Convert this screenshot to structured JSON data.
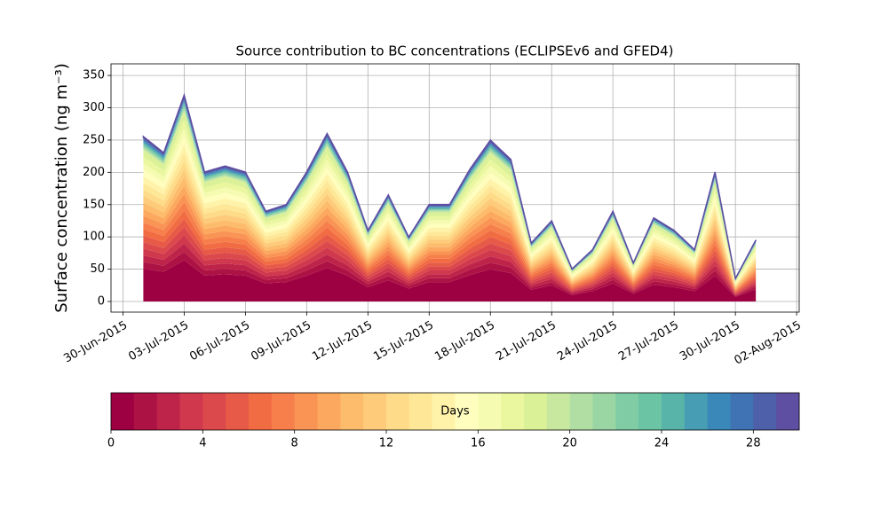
{
  "chart_data": {
    "type": "stacked_area",
    "title": "Source contribution to BC concentrations (ECLIPSEv6 and GFED4)",
    "y_label": "Surface concentration (ng m⁻³)",
    "x": [
      "2015-07-01",
      "2015-07-02",
      "2015-07-03",
      "2015-07-04",
      "2015-07-05",
      "2015-07-06",
      "2015-07-07",
      "2015-07-08",
      "2015-07-09",
      "2015-07-10",
      "2015-07-11",
      "2015-07-12",
      "2015-07-13",
      "2015-07-14",
      "2015-07-15",
      "2015-07-16",
      "2015-07-17",
      "2015-07-18",
      "2015-07-19",
      "2015-07-20",
      "2015-07-21",
      "2015-07-22",
      "2015-07-23",
      "2015-07-24",
      "2015-07-25",
      "2015-07-26",
      "2015-07-27",
      "2015-07-28",
      "2015-07-29",
      "2015-07-30",
      "2015-07-31"
    ],
    "xlim": [
      "2015-06-29T10:00",
      "2015-08-02T03:00"
    ],
    "xticks": [
      {
        "value": "2015-06-30",
        "label": "30-Jun-2015"
      },
      {
        "value": "2015-07-03",
        "label": "03-Jul-2015"
      },
      {
        "value": "2015-07-06",
        "label": "06-Jul-2015"
      },
      {
        "value": "2015-07-09",
        "label": "09-Jul-2015"
      },
      {
        "value": "2015-07-12",
        "label": "12-Jul-2015"
      },
      {
        "value": "2015-07-15",
        "label": "15-Jul-2015"
      },
      {
        "value": "2015-07-18",
        "label": "18-Jul-2015"
      },
      {
        "value": "2015-07-21",
        "label": "21-Jul-2015"
      },
      {
        "value": "2015-07-24",
        "label": "24-Jul-2015"
      },
      {
        "value": "2015-07-27",
        "label": "27-Jul-2015"
      },
      {
        "value": "2015-07-30",
        "label": "30-Jul-2015"
      },
      {
        "value": "2015-08-02",
        "label": "02-Aug-2015"
      }
    ],
    "ylim": [
      -16.5,
      368
    ],
    "yticks": [
      0,
      50,
      100,
      150,
      200,
      250,
      300,
      350
    ],
    "grid": true,
    "series": [
      {
        "color": "#9e0142",
        "values": [
          51,
          46,
          64,
          40,
          42,
          40,
          28,
          30,
          40,
          52,
          40,
          22,
          33,
          20,
          30,
          30,
          41,
          50,
          44,
          18,
          25,
          10,
          16,
          28,
          12,
          26,
          22,
          16,
          40,
          7,
          19
        ]
      },
      {
        "color": "#ad1245",
        "values": [
          10.2,
          9.2,
          12.8,
          8,
          8.4,
          8,
          5.6,
          6,
          8,
          10.4,
          8,
          4.4,
          6.6,
          4,
          6,
          6,
          8.2,
          10,
          8.8,
          3.6,
          5,
          2,
          3.2,
          5.6,
          2.4,
          5.2,
          4.4,
          3.2,
          8,
          1.4,
          3.8
        ]
      },
      {
        "color": "#be2449",
        "values": [
          10.2,
          9.2,
          12.8,
          8,
          8.4,
          8,
          5.6,
          6,
          8,
          10.4,
          8,
          4.4,
          6.6,
          4,
          6,
          6,
          8.2,
          10,
          8.8,
          3.6,
          5,
          2,
          3.2,
          5.6,
          2.4,
          5.2,
          4.4,
          3.2,
          8,
          1.4,
          3.8
        ]
      },
      {
        "color": "#cf384d",
        "values": [
          10.2,
          9.2,
          12.8,
          8,
          8.4,
          8,
          5.6,
          6,
          8,
          10.4,
          8,
          4.4,
          6.6,
          4,
          6,
          6,
          8.2,
          10,
          8.8,
          3.6,
          5,
          2,
          3.2,
          5.6,
          2.4,
          5.2,
          4.4,
          3.2,
          8,
          1.4,
          3.8
        ]
      },
      {
        "color": "#dc494c",
        "values": [
          10.2,
          9.2,
          12.8,
          8,
          8.4,
          8,
          5.6,
          6,
          8,
          10.4,
          8,
          4.4,
          6.6,
          4,
          6,
          6,
          8.2,
          10,
          8.8,
          3.6,
          5,
          2,
          3.2,
          5.6,
          2.4,
          5.2,
          4.4,
          3.2,
          8,
          1.4,
          3.8
        ]
      },
      {
        "color": "#e75a47",
        "values": [
          10.2,
          9.2,
          12.8,
          8,
          8.4,
          8,
          5.6,
          6,
          8,
          10.4,
          8,
          4.4,
          6.6,
          4,
          6,
          6,
          8.2,
          10,
          8.8,
          3.6,
          5,
          2,
          3.2,
          5.6,
          2.4,
          5.2,
          4.4,
          3.2,
          8,
          1.4,
          3.8
        ]
      },
      {
        "color": "#f16c43",
        "values": [
          10.2,
          9.2,
          12.8,
          8,
          8.4,
          8,
          5.6,
          6,
          8,
          10.4,
          8,
          4.4,
          6.6,
          4,
          6,
          6,
          8.2,
          10,
          8.8,
          3.6,
          5,
          2,
          3.2,
          5.6,
          2.4,
          5.2,
          4.4,
          3.2,
          8,
          1.4,
          3.8
        ]
      },
      {
        "color": "#f67f4b",
        "values": [
          10.2,
          9.2,
          12.8,
          8,
          8.4,
          8,
          5.6,
          6,
          8,
          10.4,
          8,
          4.4,
          6.6,
          4,
          6,
          6,
          8.2,
          10,
          8.8,
          3.6,
          5,
          2,
          3.2,
          5.6,
          2.4,
          5.2,
          4.4,
          3.2,
          8,
          1.4,
          3.8
        ]
      },
      {
        "color": "#f99455",
        "values": [
          10.2,
          9.2,
          12.8,
          8,
          8.4,
          8,
          5.6,
          6,
          8,
          10.4,
          8,
          4.4,
          6.6,
          4,
          6,
          6,
          8.2,
          10,
          8.8,
          3.6,
          5,
          2,
          3.2,
          5.6,
          2.4,
          5.2,
          4.4,
          3.2,
          8,
          1.4,
          3.8
        ]
      },
      {
        "color": "#fca85e",
        "values": [
          10.2,
          9.2,
          12.8,
          8,
          8.4,
          8,
          5.6,
          6,
          8,
          10.4,
          8,
          4.4,
          6.6,
          4,
          6,
          6,
          8.2,
          10,
          8.8,
          3.6,
          5,
          2,
          3.2,
          5.6,
          2.4,
          5.2,
          4.4,
          3.2,
          8,
          1.4,
          3.8
        ]
      },
      {
        "color": "#fdbb6c",
        "values": [
          10.2,
          9.2,
          12.8,
          8,
          8.4,
          8,
          5.6,
          6,
          8,
          10.4,
          8,
          4.4,
          6.6,
          4,
          6,
          6,
          8.2,
          10,
          8.8,
          3.6,
          5,
          2,
          3.2,
          5.6,
          2.4,
          5.2,
          4.4,
          3.2,
          8,
          1.4,
          3.8
        ]
      },
      {
        "color": "#fdcb7a",
        "values": [
          10.2,
          9.2,
          12.8,
          8,
          8.4,
          8,
          5.6,
          6,
          8,
          10.4,
          8,
          4.4,
          6.6,
          4,
          6,
          6,
          8.2,
          10,
          8.8,
          3.6,
          5,
          2,
          3.2,
          5.6,
          2.4,
          5.2,
          4.4,
          3.2,
          8,
          1.4,
          3.8
        ]
      },
      {
        "color": "#fedb88",
        "values": [
          10.2,
          9.2,
          12.8,
          8,
          8.4,
          8,
          5.6,
          6,
          8,
          10.4,
          8,
          4.4,
          6.6,
          4,
          6,
          6,
          8.2,
          10,
          8.8,
          3.6,
          5,
          2,
          3.2,
          5.6,
          2.4,
          5.2,
          4.4,
          3.2,
          8,
          1.4,
          3.8
        ]
      },
      {
        "color": "#fee898",
        "values": [
          10.2,
          9.2,
          12.8,
          8,
          8.4,
          8,
          5.6,
          6,
          8,
          10.4,
          8,
          4.4,
          6.6,
          4,
          6,
          6,
          8.2,
          10,
          8.8,
          3.6,
          5,
          2,
          3.2,
          5.6,
          2.4,
          5.2,
          4.4,
          3.2,
          8,
          1.4,
          3.8
        ]
      },
      {
        "color": "#fff3aa",
        "values": [
          10.2,
          9.2,
          12.8,
          8,
          8.4,
          8,
          5.6,
          6,
          8,
          10.4,
          8,
          4.4,
          6.6,
          4,
          6,
          6,
          8.2,
          10,
          8.8,
          3.6,
          5,
          2,
          3.2,
          5.6,
          2.4,
          5.2,
          4.4,
          3.2,
          8,
          1.4,
          3.8
        ]
      },
      {
        "color": "#fffebe",
        "values": [
          10.2,
          9.2,
          12.8,
          8,
          8.4,
          8,
          5.6,
          6,
          8,
          10.4,
          8,
          4.4,
          6.6,
          4,
          6,
          6,
          8.2,
          10,
          8.8,
          3.6,
          5,
          2,
          3.2,
          5.6,
          2.4,
          5.2,
          4.4,
          3.2,
          8,
          1.4,
          3.8
        ]
      },
      {
        "color": "#f6fbb2",
        "values": [
          10.2,
          9.2,
          12.8,
          8,
          8.4,
          8,
          5.6,
          6,
          8,
          10.4,
          8,
          4.4,
          6.6,
          4,
          6,
          6,
          8.2,
          10,
          8.8,
          3.6,
          5,
          2,
          3.2,
          5.6,
          2.4,
          5.2,
          4.4,
          3.2,
          8,
          1.4,
          3.8
        ]
      },
      {
        "color": "#eaf79f",
        "values": [
          10.2,
          9.2,
          12.8,
          8,
          8.4,
          8,
          5.6,
          6,
          8,
          10.4,
          8,
          4.4,
          6.6,
          4,
          6,
          6,
          8.2,
          10,
          8.8,
          3.6,
          5,
          2,
          3.2,
          5.6,
          2.4,
          5.2,
          4.4,
          3.2,
          8,
          1.4,
          3.8
        ]
      },
      {
        "color": "#dbf198",
        "values": [
          10.2,
          9.2,
          12.8,
          8,
          8.4,
          8,
          5.6,
          6,
          8,
          10.4,
          8,
          4.4,
          6.6,
          4,
          6,
          6,
          8.2,
          10,
          8.8,
          3.6,
          5,
          2,
          3.2,
          5.6,
          2.4,
          5.2,
          4.4,
          3.2,
          8,
          1.4,
          3.8
        ]
      },
      {
        "color": "#c7e89e",
        "values": [
          1.9,
          1.7,
          2.3,
          1.5,
          1.5,
          1.5,
          1,
          1.1,
          1.5,
          1.9,
          1.5,
          0.8,
          1.2,
          0.7,
          1.1,
          1.1,
          1.5,
          1.8,
          1.6,
          0.7,
          0.9,
          0.4,
          0.6,
          1,
          0.4,
          0.9,
          0.8,
          0.6,
          1.5,
          0.3,
          0.7
        ]
      },
      {
        "color": "#b1dfa3",
        "values": [
          1.9,
          1.7,
          2.3,
          1.5,
          1.5,
          1.5,
          1,
          1.1,
          1.5,
          1.9,
          1.5,
          0.8,
          1.2,
          0.7,
          1.1,
          1.1,
          1.5,
          1.8,
          1.6,
          0.7,
          0.9,
          0.4,
          0.6,
          1,
          0.4,
          0.9,
          0.8,
          0.6,
          1.5,
          0.3,
          0.7
        ]
      },
      {
        "color": "#99d6a4",
        "values": [
          1.9,
          1.7,
          2.3,
          1.5,
          1.5,
          1.5,
          1,
          1.1,
          1.5,
          1.9,
          1.5,
          0.8,
          1.2,
          0.7,
          1.1,
          1.1,
          1.5,
          1.8,
          1.6,
          0.7,
          0.9,
          0.4,
          0.6,
          1,
          0.4,
          0.9,
          0.8,
          0.6,
          1.5,
          0.3,
          0.7
        ]
      },
      {
        "color": "#80cca5",
        "values": [
          1.9,
          1.7,
          2.3,
          1.5,
          1.5,
          1.5,
          1,
          1.1,
          1.5,
          1.9,
          1.5,
          0.8,
          1.2,
          0.7,
          1.1,
          1.1,
          1.5,
          1.8,
          1.6,
          0.7,
          0.9,
          0.4,
          0.6,
          1,
          0.4,
          0.9,
          0.8,
          0.6,
          1.5,
          0.3,
          0.7
        ]
      },
      {
        "color": "#6bc4a4",
        "values": [
          1.9,
          1.7,
          2.3,
          1.5,
          1.5,
          1.5,
          1,
          1.1,
          1.5,
          1.9,
          1.5,
          0.8,
          1.2,
          0.7,
          1.1,
          1.1,
          1.5,
          1.8,
          1.6,
          0.7,
          0.9,
          0.4,
          0.6,
          1,
          0.4,
          0.9,
          0.8,
          0.6,
          1.5,
          0.3,
          0.7
        ]
      },
      {
        "color": "#58b3a8",
        "values": [
          1.9,
          1.7,
          2.3,
          1.5,
          1.5,
          1.5,
          1,
          1.1,
          1.5,
          1.9,
          1.5,
          0.8,
          1.2,
          0.7,
          1.1,
          1.1,
          1.5,
          1.8,
          1.6,
          0.7,
          0.9,
          0.4,
          0.6,
          1,
          0.4,
          0.9,
          0.8,
          0.6,
          1.5,
          0.3,
          0.7
        ]
      },
      {
        "color": "#479db3",
        "values": [
          1.9,
          1.7,
          2.3,
          1.5,
          1.5,
          1.5,
          1,
          1.1,
          1.5,
          1.9,
          1.5,
          0.8,
          1.2,
          0.7,
          1.1,
          1.1,
          1.5,
          1.8,
          1.6,
          0.7,
          0.9,
          0.4,
          0.6,
          1,
          0.4,
          0.9,
          0.8,
          0.6,
          1.5,
          0.3,
          0.7
        ]
      },
      {
        "color": "#3a88ba",
        "values": [
          1.9,
          1.7,
          2.3,
          1.5,
          1.5,
          1.5,
          1,
          1.1,
          1.5,
          1.9,
          1.5,
          0.8,
          1.2,
          0.7,
          1.1,
          1.1,
          1.5,
          1.8,
          1.6,
          0.7,
          0.9,
          0.4,
          0.6,
          1,
          0.4,
          0.9,
          0.8,
          0.6,
          1.5,
          0.3,
          0.7
        ]
      },
      {
        "color": "#3f73b3",
        "values": [
          1.9,
          1.7,
          2.3,
          1.5,
          1.5,
          1.5,
          1,
          1.1,
          1.5,
          1.9,
          1.5,
          0.8,
          1.2,
          0.7,
          1.1,
          1.1,
          1.5,
          1.8,
          1.6,
          0.7,
          0.9,
          0.4,
          0.6,
          1,
          0.4,
          0.9,
          0.8,
          0.6,
          1.5,
          0.3,
          0.7
        ]
      },
      {
        "color": "#4d60a9",
        "values": [
          1.9,
          1.7,
          2.3,
          1.5,
          1.5,
          1.5,
          1,
          1.1,
          1.5,
          1.9,
          1.5,
          0.8,
          1.2,
          0.7,
          1.1,
          1.1,
          1.5,
          1.8,
          1.6,
          0.7,
          0.9,
          0.4,
          0.6,
          1,
          0.4,
          0.9,
          0.8,
          0.6,
          1.5,
          0.3,
          0.7
        ]
      },
      {
        "color": "#5e4fa2",
        "values": [
          1.9,
          1.7,
          2.3,
          1.5,
          1.5,
          1.5,
          1,
          1.1,
          1.5,
          1.9,
          1.5,
          0.8,
          1.2,
          0.7,
          1.1,
          1.1,
          1.5,
          1.8,
          1.6,
          0.7,
          0.9,
          0.4,
          0.6,
          1,
          0.4,
          0.9,
          0.8,
          0.6,
          1.5,
          0.3,
          0.7
        ]
      }
    ],
    "colorbar": {
      "label": "Days",
      "lim": [
        0,
        30
      ],
      "ticks": [
        0,
        4,
        8,
        12,
        16,
        20,
        24,
        28
      ]
    }
  }
}
